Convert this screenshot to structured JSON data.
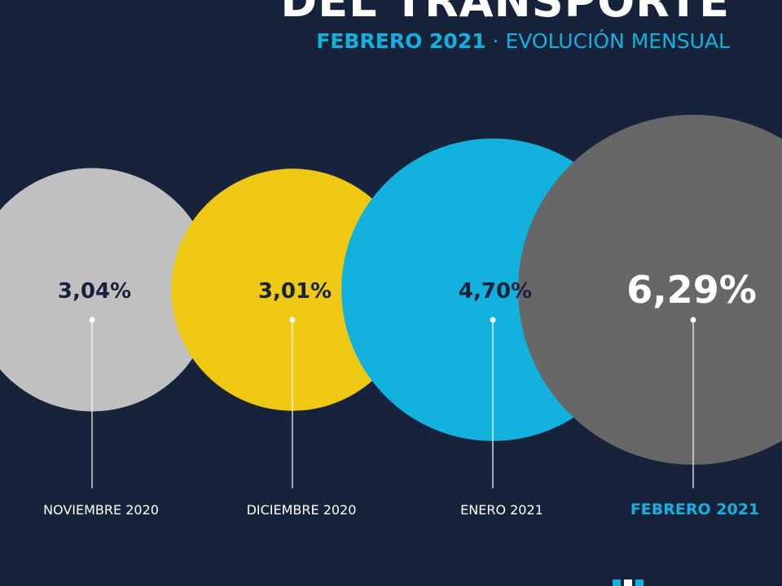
{
  "header": {
    "title": "DEL TRANSPORTE",
    "subtitle_strong": "FEBRERO 2021",
    "subtitle_separator": " · ",
    "subtitle_light": "EVOLUCIÓN MENSUAL"
  },
  "chart_data": {
    "type": "bubble",
    "unit": "%",
    "points": [
      {
        "month": "NOVIEMBRE 2020",
        "value": 3.04,
        "label": "3,04%",
        "color": "#c0c0c0",
        "text_color": "#16233a",
        "month_color": "#ffffff",
        "highlight": false
      },
      {
        "month": "DICIEMBRE 2020",
        "value": 3.01,
        "label": "3,01%",
        "color": "#efc814",
        "text_color": "#16233a",
        "month_color": "#ffffff",
        "highlight": false
      },
      {
        "month": "ENERO 2021",
        "value": 4.7,
        "label": "4,70%",
        "color": "#13b1de",
        "text_color": "#16233a",
        "month_color": "#ffffff",
        "highlight": false
      },
      {
        "month": "FEBRERO 2021",
        "value": 6.29,
        "label": "6,29%",
        "color": "#676767",
        "text_color": "#ffffff",
        "month_color": "#13b1de",
        "highlight": true
      }
    ]
  },
  "colors": {
    "background": "#16233a",
    "accent": "#13b1de"
  }
}
